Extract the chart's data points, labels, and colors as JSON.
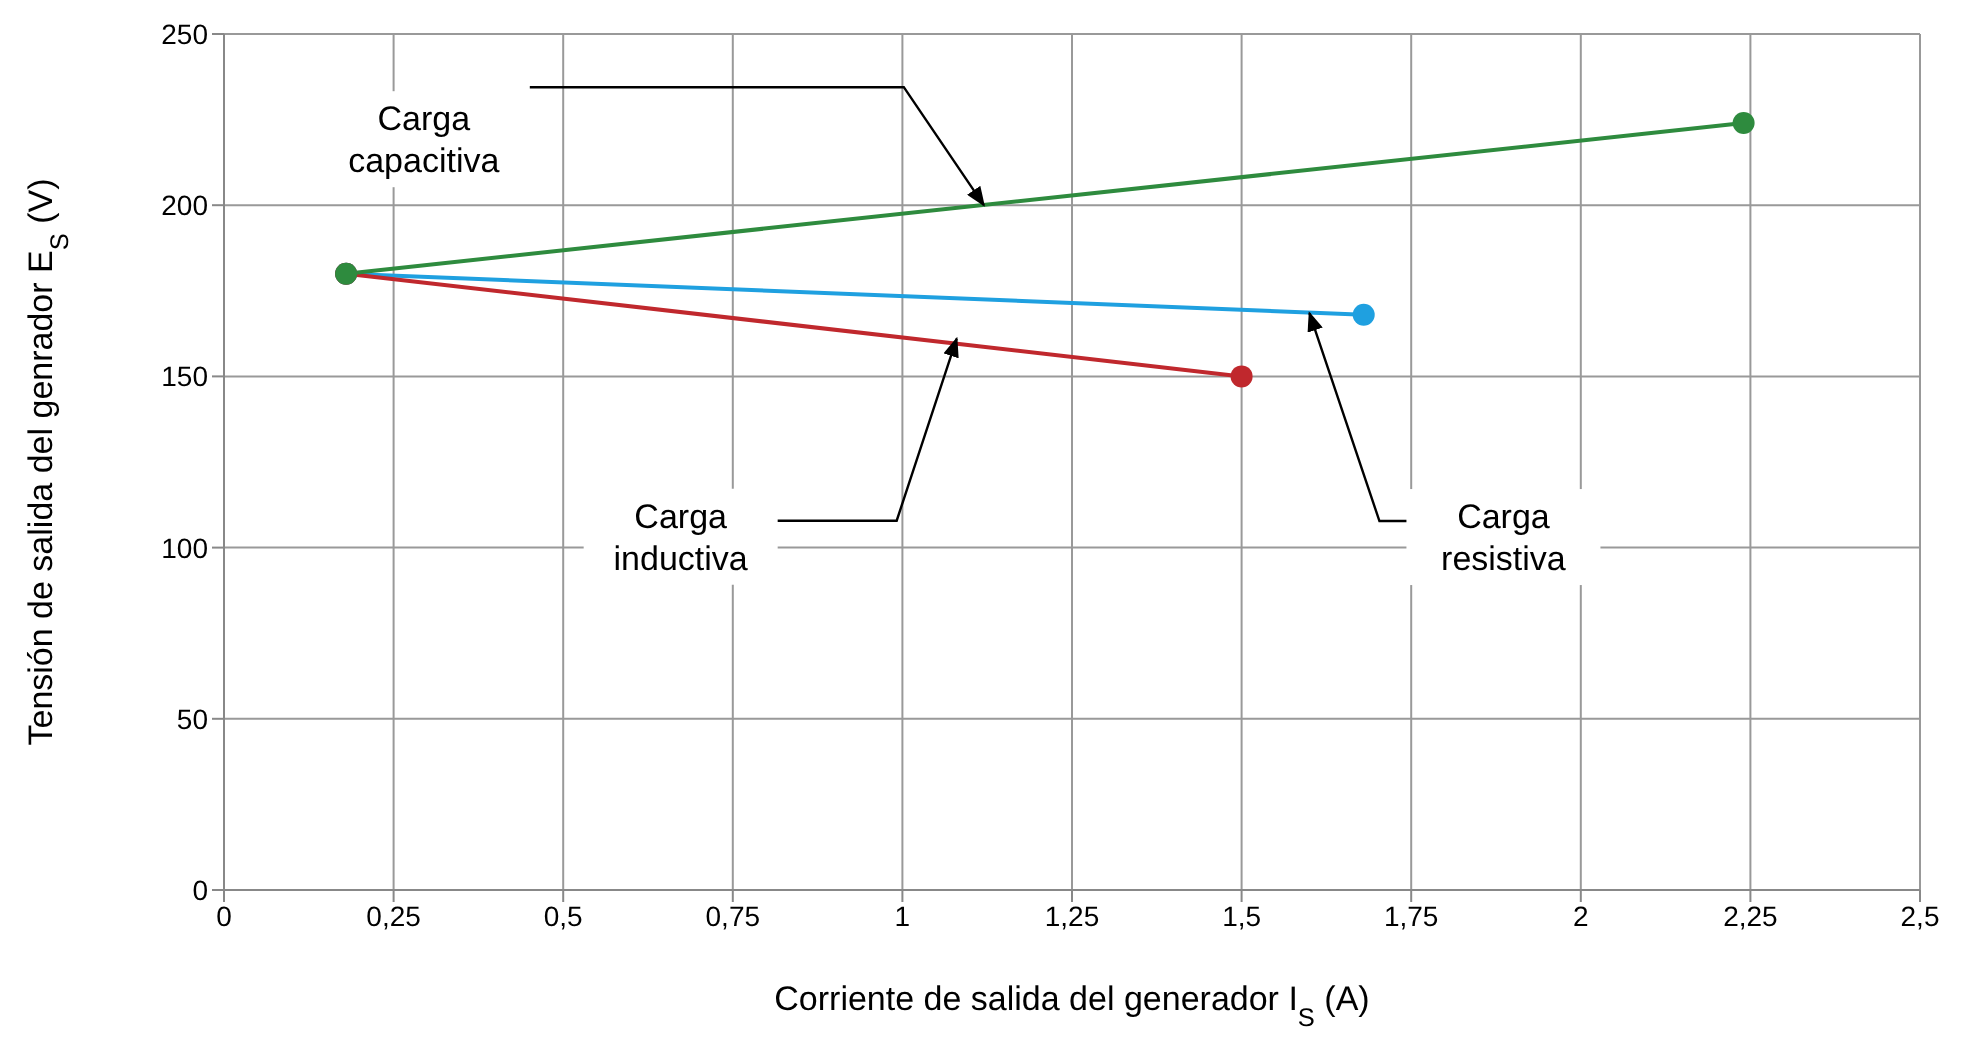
{
  "chart_data": {
    "type": "line",
    "xlabel": "Corriente de salida del generador I$_{S}$ (A)",
    "ylabel": "Tensión de salida del genrador E$_{S}$ (V)",
    "series": [
      {
        "x": [
          0.18,
          1.68
        ],
        "values": [
          180,
          168
        ],
        "color": "#1fa0e0"
      },
      {
        "x": [
          0.18,
          1.5
        ],
        "values": [
          180,
          150
        ],
        "color": "#c0282d"
      },
      {
        "x": [
          0.18,
          2.24
        ],
        "values": [
          180,
          224
        ],
        "color": "#2e8b3e"
      }
    ],
    "marker": "circle",
    "grid": true,
    "legend": false,
    "xlim": [
      0,
      2.5
    ],
    "xticks": [
      0,
      {
        "value": 0.25,
        "label": "0,25"
      },
      {
        "value": 0.5,
        "label": "0,5"
      },
      {
        "value": 0.75,
        "label": "0,75"
      },
      1,
      {
        "value": 1.25,
        "label": "1,25"
      },
      {
        "value": 1.5,
        "label": "1,5"
      },
      {
        "value": 1.75,
        "label": "1,75"
      },
      2,
      {
        "value": 2.25,
        "label": "2,25"
      },
      {
        "value": 2.5,
        "label": "2,5"
      }
    ],
    "ylim": [
      0,
      250
    ],
    "yticks": [
      0,
      50,
      100,
      150,
      200,
      250
    ],
    "annotations": [
      {
        "text": "Carga capacitiva",
        "x": 1.12,
        "y": 200
      },
      {
        "text": "Carga resistiva",
        "x": 1.6,
        "y": 168.5
      },
      {
        "text": "Carga inductiva",
        "x": 1.08,
        "y": 161
      }
    ]
  }
}
